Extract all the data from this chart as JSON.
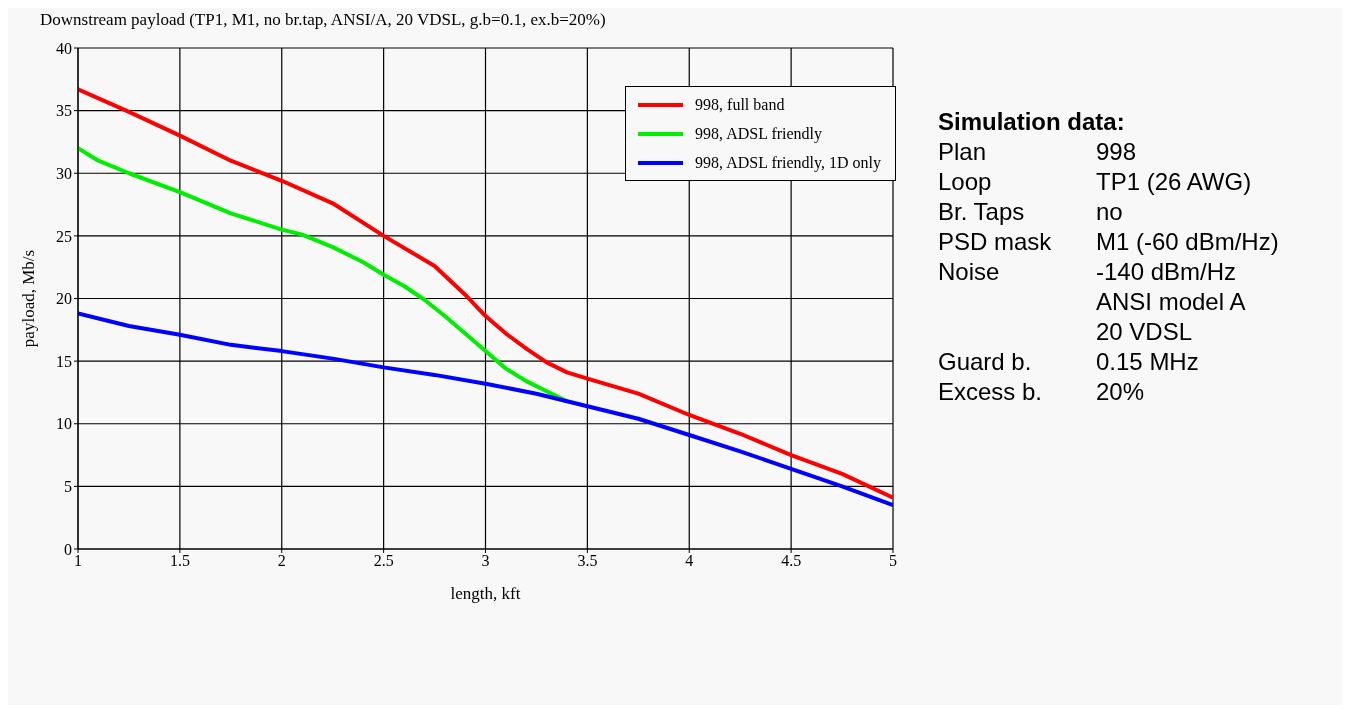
{
  "chart_data": {
    "type": "line",
    "title": "Downstream payload (TP1, M1, no br.tap, ANSI/A, 20 VDSL, g.b=0.1, ex.b=20%)",
    "xlabel": "length, kft",
    "ylabel": "payload, Mb/s",
    "xlim": [
      1,
      5
    ],
    "xticks": [
      1,
      1.5,
      2,
      2.5,
      3,
      3.5,
      4,
      4.5,
      5
    ],
    "ylim": [
      0,
      40
    ],
    "yticks": [
      0,
      5,
      10,
      15,
      20,
      25,
      30,
      35,
      40
    ],
    "grid": true,
    "legend": "top right",
    "marker": "none",
    "line_style": "solid",
    "series": [
      {
        "name": "998, full band",
        "color": "#ff0000",
        "x": [
          1,
          1.25,
          1.5,
          1.75,
          2,
          2.25,
          2.5,
          2.75,
          2.9,
          3,
          3.1,
          3.2,
          3.3,
          3.4,
          3.5,
          3.75,
          4,
          4.25,
          4.5,
          4.75,
          5
        ],
        "values": [
          36.7,
          34.9,
          33,
          31,
          29.4,
          27.6,
          25,
          22.6,
          20.3,
          18.6,
          17.2,
          16,
          14.9,
          14.1,
          13.6,
          12.4,
          10.7,
          9.2,
          7.5,
          6,
          4.1
        ]
      },
      {
        "name": "998, ADSL friendly",
        "color": "#00ee00",
        "x": [
          1,
          1.1,
          1.25,
          1.5,
          1.75,
          2,
          2.1,
          2.25,
          2.4,
          2.5,
          2.6,
          2.7,
          2.8,
          2.9,
          3,
          3.1,
          3.2,
          3.3,
          3.4
        ],
        "values": [
          32,
          31,
          30,
          28.5,
          26.8,
          25.5,
          25.1,
          24.1,
          22.9,
          21.9,
          21,
          19.9,
          18.6,
          17.2,
          15.8,
          14.4,
          13.4,
          12.6,
          11.8
        ]
      },
      {
        "name": "998, ADSL friendly, 1D only",
        "color": "#0000ff",
        "x": [
          1,
          1.25,
          1.5,
          1.75,
          2,
          2.25,
          2.5,
          2.75,
          3,
          3.25,
          3.5,
          3.75,
          4,
          4.25,
          4.5,
          4.75,
          5
        ],
        "values": [
          18.8,
          17.8,
          17.1,
          16.3,
          15.8,
          15.2,
          14.5,
          13.9,
          13.2,
          12.4,
          11.4,
          10.4,
          9.1,
          7.8,
          6.4,
          5,
          3.5
        ]
      }
    ],
    "annotations": [
      "Simulation data:",
      "Plan",
      "998",
      "Loop",
      "TP1 (26 AWG)",
      "Br. Taps",
      "no",
      "PSD mask",
      "M1 (-60 dBm/Hz)",
      "Noise",
      "-140 dBm/Hz",
      "ANSI model A",
      "20 VDSL",
      "Guard b.",
      "0.15 MHz",
      "Excess b.",
      "20%"
    ]
  }
}
